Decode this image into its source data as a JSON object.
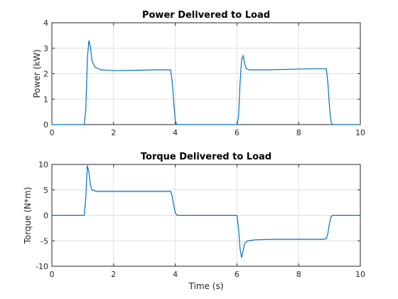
{
  "chart_data": [
    {
      "type": "line",
      "title": "Power Delivered to Load",
      "xlabel": "",
      "ylabel": "Power (kW)",
      "xlim": [
        0,
        10
      ],
      "ylim": [
        0,
        4
      ],
      "xticks": [
        0,
        2,
        4,
        6,
        8,
        10
      ],
      "yticks": [
        0,
        1,
        2,
        3,
        4
      ],
      "grid": true,
      "series": [
        {
          "color": "#0072bd",
          "x": [
            0,
            1.05,
            1.1,
            1.15,
            1.2,
            1.25,
            1.3,
            1.4,
            1.6,
            2.0,
            2.6,
            3.3,
            3.85,
            3.9,
            3.95,
            4.0,
            4.05,
            6.0,
            6.05,
            6.1,
            6.15,
            6.2,
            6.25,
            6.3,
            6.4,
            6.6,
            7.0,
            7.6,
            8.3,
            8.9,
            8.95,
            9.0,
            9.05,
            9.1,
            10.0
          ],
          "y": [
            0,
            0,
            0.6,
            2.6,
            3.3,
            3.05,
            2.5,
            2.25,
            2.15,
            2.12,
            2.13,
            2.15,
            2.15,
            1.7,
            0.9,
            0.15,
            0,
            0,
            0.3,
            1.6,
            2.55,
            2.7,
            2.4,
            2.2,
            2.15,
            2.15,
            2.15,
            2.17,
            2.19,
            2.19,
            1.6,
            0.7,
            0.1,
            0,
            0
          ]
        }
      ]
    },
    {
      "type": "line",
      "title": "Torque Delivered to Load",
      "xlabel": "Time (s)",
      "ylabel": "Torque (N*m)",
      "xlim": [
        0,
        10
      ],
      "ylim": [
        -10,
        10
      ],
      "xticks": [
        0,
        2,
        4,
        6,
        8,
        10
      ],
      "yticks": [
        -10,
        -5,
        0,
        5,
        10
      ],
      "grid": true,
      "series": [
        {
          "color": "#0072bd",
          "x": [
            0,
            1.05,
            1.1,
            1.15,
            1.2,
            1.25,
            1.3,
            1.45,
            2.0,
            2.8,
            3.5,
            3.85,
            3.9,
            3.95,
            4.0,
            4.05,
            4.1,
            6.0,
            6.05,
            6.1,
            6.15,
            6.2,
            6.25,
            6.35,
            6.6,
            7.2,
            8.0,
            8.8,
            8.9,
            8.95,
            9.0,
            9.05,
            9.1,
            10.0
          ],
          "y": [
            0,
            0,
            3.5,
            9.8,
            8.5,
            6.0,
            5.0,
            4.7,
            4.7,
            4.7,
            4.7,
            4.7,
            3.8,
            2.0,
            0.5,
            0.05,
            0,
            0,
            -2.5,
            -6.5,
            -8.3,
            -7.0,
            -5.5,
            -5.0,
            -4.8,
            -4.7,
            -4.7,
            -4.7,
            -4.6,
            -3.5,
            -1.5,
            -0.3,
            0,
            0
          ]
        }
      ]
    }
  ]
}
